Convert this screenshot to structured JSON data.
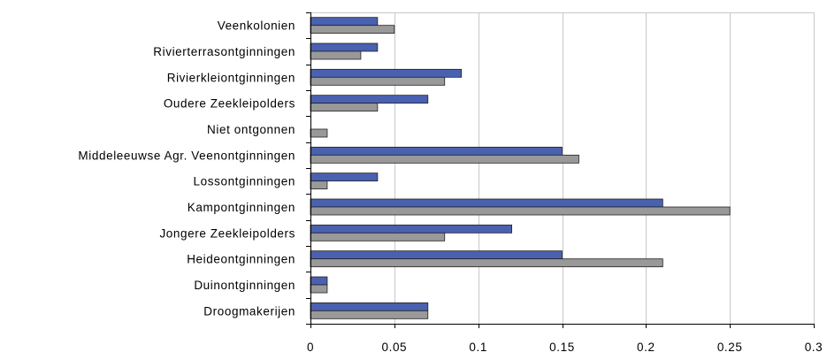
{
  "chart_data": {
    "type": "bar",
    "orientation": "horizontal",
    "categories": [
      "Veenkolonien",
      "Rivierterrasontginningen",
      "Rivierkleiontginningen",
      "Oudere Zeekleipolders",
      "Niet ontgonnen",
      "Middeleeuwse Agr. Veenontginningen",
      "Lossontginningen",
      "Kampontginningen",
      "Jongere Zeekleipolders",
      "Heideontginningen",
      "Duinontginningen",
      "Droogmakerijen"
    ],
    "series": [
      {
        "color": "#4a60b0",
        "values": [
          0.04,
          0.04,
          0.09,
          0.07,
          0,
          0.15,
          0.04,
          0.21,
          0.12,
          0.15,
          0.01,
          0.07
        ]
      },
      {
        "color": "#999999",
        "values": [
          0.05,
          0.03,
          0.08,
          0.04,
          0.01,
          0.16,
          0.01,
          0.25,
          0.08,
          0.21,
          0.01,
          0.07
        ]
      }
    ],
    "xlim": [
      0,
      0.3
    ],
    "xticks": [
      0,
      0.05,
      0.1,
      0.15,
      0.2,
      0.25,
      0.3
    ],
    "xtick_labels": [
      "0",
      "0.05",
      "0.1",
      "0.15",
      "0.2",
      "0.25",
      "0.3"
    ],
    "grid": "vertical",
    "legend": "none",
    "title": "",
    "xlabel": "",
    "ylabel": ""
  }
}
